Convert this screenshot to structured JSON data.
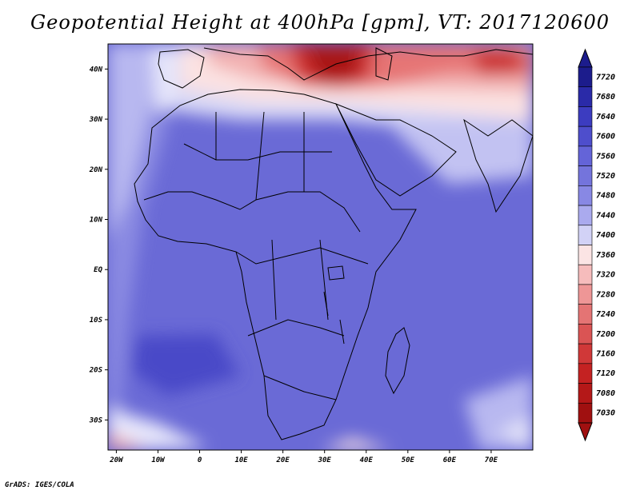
{
  "title": "Geopotential Height at 400hPa [gpm], VT: 2017120600",
  "credit": "GrADS: IGES/COLA",
  "map": {
    "lat_labels": [
      "40N",
      "30N",
      "20N",
      "10N",
      "EQ",
      "10S",
      "20S",
      "30S"
    ],
    "lon_labels": [
      "20W",
      "10W",
      "0",
      "10E",
      "20E",
      "30E",
      "40E",
      "50E",
      "60E",
      "70E"
    ],
    "extent": {
      "lon_min": -22,
      "lon_max": 80,
      "lat_min": -36,
      "lat_max": 45
    }
  },
  "colorbar": {
    "levels": [
      "7720",
      "7680",
      "7640",
      "7600",
      "7560",
      "7520",
      "7480",
      "7440",
      "7400",
      "7360",
      "7320",
      "7280",
      "7240",
      "7200",
      "7160",
      "7120",
      "7080",
      "7030"
    ],
    "colors": [
      "#1c1c8c",
      "#2a2aa8",
      "#3c3cc0",
      "#4e4ecc",
      "#6464d8",
      "#7474dc",
      "#8888e4",
      "#aaaaee",
      "#d2d2f6",
      "#fbe4e4",
      "#f6bcbc",
      "#ee9696",
      "#e47474",
      "#da5454",
      "#d03838",
      "#c42222",
      "#b41818",
      "#a01010"
    ]
  }
}
